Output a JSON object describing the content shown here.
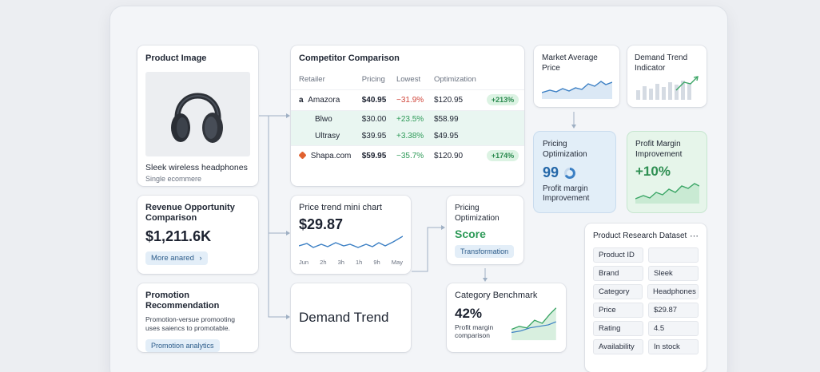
{
  "product_image": {
    "title": "Product Image",
    "name": "Sleek wireless headphones",
    "subtitle": "Single ecommere"
  },
  "competitor": {
    "title": "Competitor Comparison",
    "headers": [
      "Retailer",
      "Pricing",
      "Lowest",
      "Optimization"
    ],
    "rows": [
      {
        "retailer": "Amazora",
        "pricing": "$40.95",
        "lowest": "−31.9%",
        "optimization": "$120.95",
        "badge": "+213%"
      },
      {
        "retailer": "Blwo",
        "pricing": "$30.00",
        "lowest": "+23.5%",
        "optimization": "$58.99",
        "badge": ""
      },
      {
        "retailer": "Ultrasy",
        "pricing": "$39.95",
        "lowest": "+3.38%",
        "optimization": "$49.95",
        "badge": ""
      },
      {
        "retailer": "Shapa.com",
        "pricing": "$59.95",
        "lowest": "−35.7%",
        "optimization": "$120.90",
        "badge": "+174%"
      }
    ]
  },
  "market_avg": {
    "title": "Market Average Price"
  },
  "demand_indicator": {
    "title": "Demand Trend Indicator"
  },
  "pricing_opt_blue": {
    "title": "Pricing Optimization",
    "value": "99",
    "caption": "Profit margin Improvement"
  },
  "profit_margin": {
    "title": "Profit Margin Improvement",
    "value": "+10%"
  },
  "revenue": {
    "title": "Revenue Opportunity Comparison",
    "value": "$1,211.6K",
    "button": "More anared"
  },
  "price_trend": {
    "title": "Price trend mini chart",
    "value": "$29.87",
    "xticks": [
      "Jun",
      "2h",
      "3h",
      "1h",
      "9h",
      "May"
    ]
  },
  "pricing_score": {
    "title": "Pricing Optimization",
    "value": "Score",
    "button": "Transformation"
  },
  "promotion": {
    "title": "Promotion Recommendation",
    "body": "Promotion-versue promooting uses saiencs to promotable.",
    "button": "Promotion analytics"
  },
  "demand_trend": {
    "title": "Demand Trend"
  },
  "category": {
    "title": "Category Benchmark",
    "value": "42%",
    "caption": "Profit margin comparison"
  },
  "dataset": {
    "title": "Product Research Dataset",
    "menu": "⋯",
    "rows": [
      {
        "k": "Product ID",
        "v": ""
      },
      {
        "k": "Brand",
        "v": "Sleek"
      },
      {
        "k": "Category",
        "v": "Headphones"
      },
      {
        "k": "Price",
        "v": "$29.87"
      },
      {
        "k": "Rating",
        "v": "4.5"
      },
      {
        "k": "Availability",
        "v": "In stock"
      }
    ]
  },
  "colors": {
    "accent_blue": "#3b7fc4",
    "accent_green": "#3aa565",
    "negative": "#d0453a"
  }
}
